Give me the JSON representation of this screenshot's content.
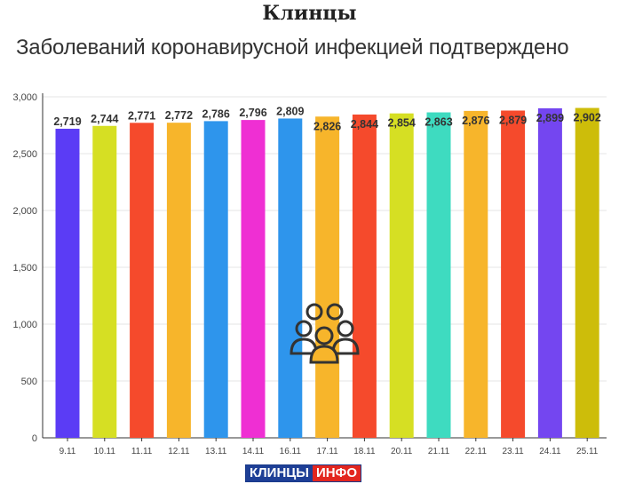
{
  "header": {
    "title": "Клинцы",
    "subtitle": "Заболеваний коронавирусной инфекцией подтверждено"
  },
  "logo": {
    "part1": "КЛИНЦЫ",
    "part2": "ИНФО"
  },
  "icon": "people-group-icon",
  "chart_data": {
    "type": "bar",
    "categories": [
      "9.11",
      "10.11",
      "11.11",
      "12.11",
      "13.11",
      "14.11",
      "16.11",
      "17.11",
      "18.11",
      "20.11",
      "21.11",
      "22.11",
      "23.11",
      "24.11",
      "25.11"
    ],
    "values": [
      2719,
      2744,
      2771,
      2772,
      2786,
      2796,
      2809,
      2826,
      2844,
      2854,
      2863,
      2876,
      2879,
      2899,
      2902
    ],
    "data_labels": [
      "2,719",
      "2,744",
      "2,771",
      "2,772",
      "2,786",
      "2,796",
      "2,809",
      "2,826",
      "2,844",
      "2,854",
      "2,863",
      "2,876",
      "2,879",
      "2,899",
      "2,902"
    ],
    "colors": [
      "#5b3cf5",
      "#d6df23",
      "#f54a2c",
      "#f7b52b",
      "#2e95ec",
      "#ef2fd3",
      "#2e95ec",
      "#f7b52b",
      "#f54a2c",
      "#d6df23",
      "#3edbc0",
      "#f7b52b",
      "#f54a2c",
      "#7446f0",
      "#cdbd0a"
    ],
    "yticks": [
      0,
      500,
      1000,
      1500,
      2000,
      2500,
      3000
    ],
    "ytick_labels": [
      "0",
      "500",
      "1,000",
      "1,500",
      "2,000",
      "2,500",
      "3,000"
    ],
    "ylim": [
      0,
      3000
    ],
    "grid": true,
    "title": "Клинцы",
    "subtitle": "Заболеваний коронавирусной инфекцией подтверждено",
    "xlabel": "",
    "ylabel": ""
  }
}
